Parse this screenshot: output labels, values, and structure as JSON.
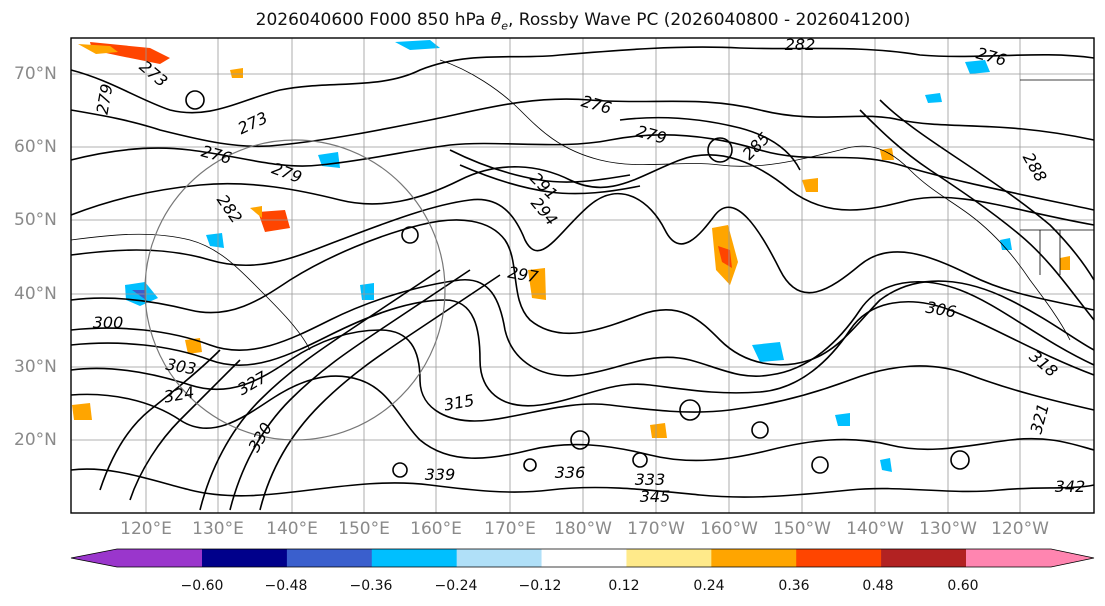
{
  "title_main": "2026040600 F000 850 hPa ",
  "title_sym": "θ",
  "title_sub": "e",
  "title_rest": ", Rossby Wave PC (2026040800 - 2026041200)",
  "lat_labels": [
    "70°N",
    "60°N",
    "50°N",
    "40°N",
    "30°N",
    "20°N"
  ],
  "lon_labels": [
    "120°E",
    "130°E",
    "140°E",
    "150°E",
    "160°E",
    "170°E",
    "180°W",
    "170°W",
    "160°W",
    "150°W",
    "140°W",
    "130°W",
    "120°W"
  ],
  "contour_labels": [
    "279",
    "273",
    "273",
    "276",
    "279",
    "282",
    "276",
    "282",
    "276",
    "279",
    "291",
    "294",
    "297",
    "300",
    "303",
    "306",
    "315",
    "318",
    "321",
    "324",
    "327",
    "330",
    "333",
    "336",
    "339",
    "342",
    "345",
    "288",
    "285"
  ],
  "colorbar": {
    "colors": [
      "#9a36cc",
      "#00008b",
      "#3a5fcd",
      "#00bfff",
      "#b0e0f8",
      "#ffffff",
      "#ffea8a",
      "#ffa500",
      "#ff4500",
      "#b22222",
      "#ff85b0"
    ],
    "ticks": [
      "−0.60",
      "−0.48",
      "−0.36",
      "−0.24",
      "−0.12",
      "0.12",
      "0.24",
      "0.36",
      "0.48",
      "0.60"
    ]
  },
  "colors": {
    "contour": "#000000",
    "grid": "#999999",
    "coast": "#000000"
  }
}
